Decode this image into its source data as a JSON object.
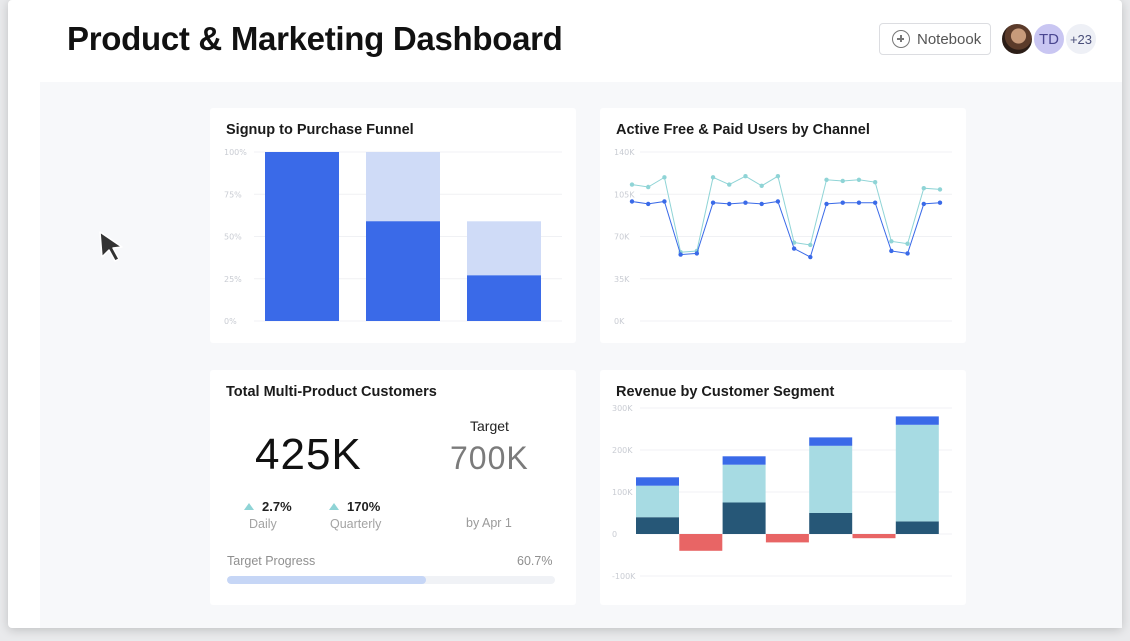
{
  "header": {
    "title": "Product & Marketing Dashboard",
    "notebook_label": "Notebook",
    "avatar_initials": "TD",
    "more_count": "+23"
  },
  "colors": {
    "primary_blue": "#3a6ae8",
    "light_blue": "#cfdbf7",
    "teal": "#8fd4d6",
    "light_teal": "#a7dbe3",
    "navy": "#265777",
    "red": "#e86565"
  },
  "funnel": {
    "title": "Signup to Purchase Funnel",
    "chart_data": {
      "type": "bar",
      "categories": [
        "",
        "",
        ""
      ],
      "series": [
        {
          "values": [
            100,
            59,
            27
          ]
        },
        {
          "values": [
            100,
            100,
            59
          ]
        }
      ],
      "ylim": [
        0,
        100
      ],
      "y_ticks": [
        "0%",
        "25%",
        "50%",
        "75%",
        "100%"
      ],
      "grid": true
    }
  },
  "users": {
    "title": "Active Free & Paid Users by Channel",
    "chart_data": {
      "type": "line",
      "series": [
        {
          "values": [
            113,
            111,
            119,
            57,
            58,
            119,
            113,
            120,
            112,
            120,
            65,
            63,
            117,
            116,
            117,
            115,
            66,
            64,
            110,
            109
          ]
        },
        {
          "values": [
            99,
            97,
            99,
            55,
            56,
            98,
            97,
            98,
            97,
            99,
            60,
            53,
            97,
            98,
            98,
            98,
            58,
            56,
            97,
            98
          ]
        }
      ],
      "ylim": [
        0,
        140
      ],
      "y_ticks": [
        "0K",
        "35K",
        "70K",
        "105K",
        "140K"
      ],
      "grid": true
    }
  },
  "kpi": {
    "title": "Total Multi-Product Customers",
    "value": "425K",
    "daily_change": "2.7%",
    "daily_label": "Daily",
    "quarterly_change": "170%",
    "quarterly_label": "Quarterly",
    "target_label": "Target",
    "target_value": "700K",
    "target_date": "by Apr 1",
    "progress_label": "Target Progress",
    "progress_pct": "60.7%",
    "progress_fraction": 0.607
  },
  "revenue": {
    "title": "Revenue by Customer Segment",
    "chart_data": {
      "type": "bar",
      "stacked": true,
      "categories": [
        "",
        "",
        "",
        "",
        "",
        "",
        ""
      ],
      "series": [
        {
          "values": [
            40,
            -40,
            75,
            -20,
            50,
            -10,
            30
          ]
        },
        {
          "values": [
            75,
            0,
            90,
            0,
            160,
            0,
            230
          ]
        },
        {
          "values": [
            20,
            0,
            20,
            0,
            20,
            0,
            20
          ]
        }
      ],
      "ylim": [
        -100,
        300
      ],
      "y_ticks": [
        "-100K",
        "0",
        "100K",
        "200K",
        "300K"
      ],
      "grid": true
    }
  }
}
